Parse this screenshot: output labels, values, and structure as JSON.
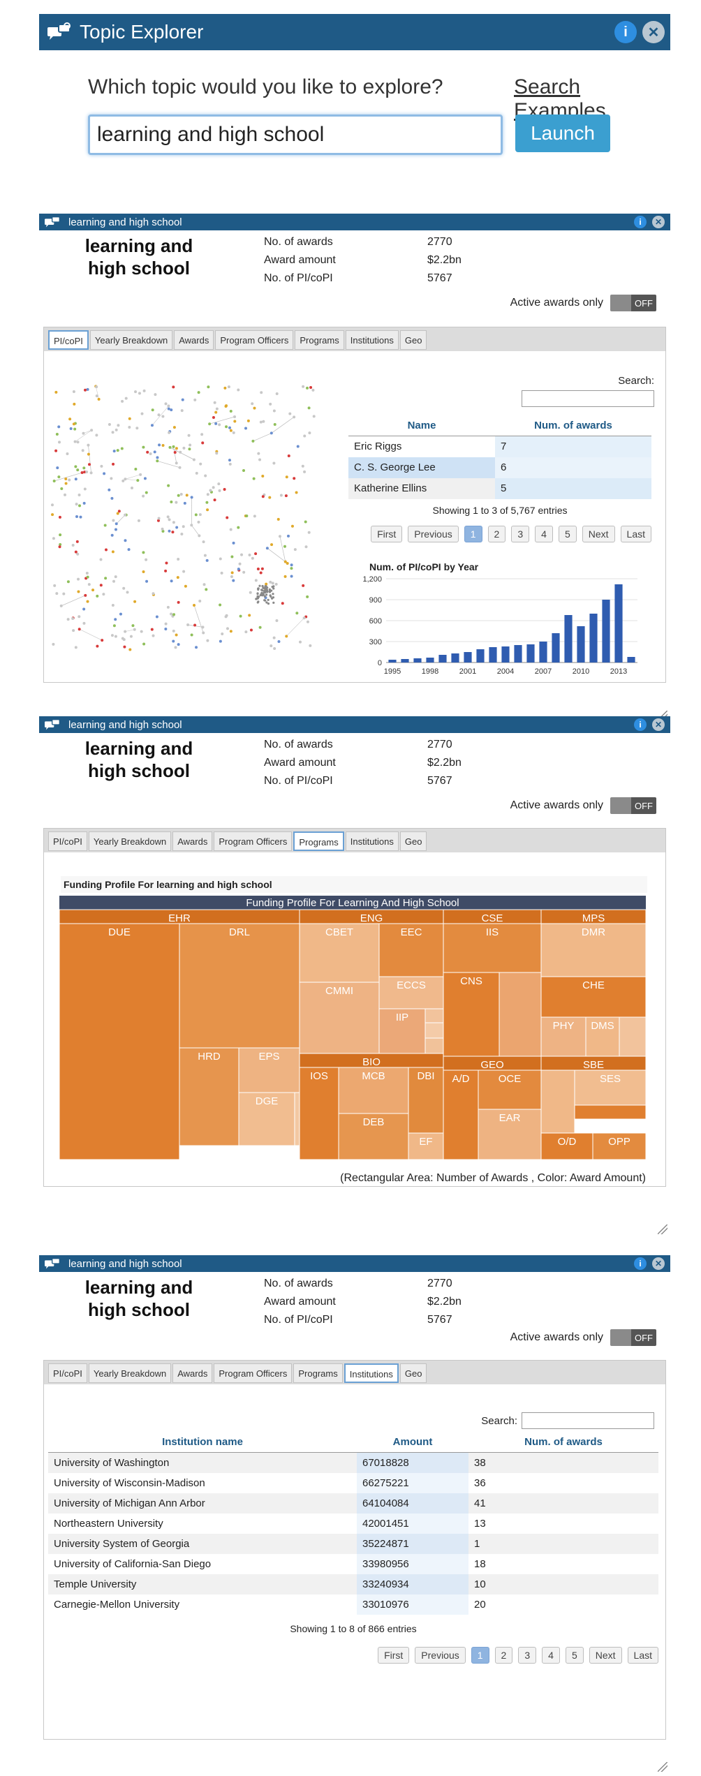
{
  "launcher": {
    "title": "Topic Explorer",
    "question": "Which topic would you like to explore?",
    "examples_link": "Search Examples",
    "input_value": "learning and high school",
    "launch_label": "Launch"
  },
  "summary": {
    "window_title": "learning and high school",
    "topic": "learning and high school",
    "rows": [
      {
        "label": "No. of awards",
        "value": "2770"
      },
      {
        "label": "Award amount",
        "value": "$2.2bn"
      },
      {
        "label": "No. of PI/coPI",
        "value": "5767"
      }
    ],
    "active_label": "Active awards only",
    "toggle_label": "OFF"
  },
  "tabs": [
    "PI/coPI",
    "Yearly Breakdown",
    "Awards",
    "Program Officers",
    "Programs",
    "Institutions",
    "Geo"
  ],
  "pi_panel": {
    "search_label": "Search:",
    "columns": [
      "Name",
      "Num. of awards"
    ],
    "rows": [
      {
        "name": "Eric Riggs",
        "count": "7"
      },
      {
        "name": "C. S. George Lee",
        "count": "6"
      },
      {
        "name": "Katherine Ellins",
        "count": "5"
      }
    ],
    "showing": "Showing 1 to 3 of 5,767 entries",
    "pager": {
      "first": "First",
      "previous": "Previous",
      "pages": [
        "1",
        "2",
        "3",
        "4",
        "5"
      ],
      "next": "Next",
      "last": "Last"
    }
  },
  "chart_data": {
    "type": "bar",
    "title": "Num. of PI/coPI by Year",
    "xlabel": "",
    "ylabel": "",
    "x": [
      1995,
      1996,
      1997,
      1998,
      1999,
      2000,
      2001,
      2002,
      2003,
      2004,
      2005,
      2006,
      2007,
      2008,
      2009,
      2010,
      2011,
      2012,
      2013,
      2014
    ],
    "values": [
      40,
      50,
      60,
      70,
      110,
      130,
      150,
      190,
      220,
      230,
      250,
      260,
      300,
      420,
      680,
      520,
      700,
      900,
      1120,
      80
    ],
    "xticks": [
      "1995",
      "1998",
      "2001",
      "2004",
      "2007",
      "2010",
      "2013"
    ],
    "yticks": [
      "0",
      "300",
      "600",
      "900",
      "1,200"
    ],
    "ylim": [
      0,
      1200
    ],
    "bar_color": "#2f5cb0"
  },
  "programs_panel": {
    "section_title": "Funding Profile For learning and high school",
    "treemap_title": "Funding Profile For Learning And High School",
    "footer": "(Rectangular Area: Number of Awards , Color: Award Amount)",
    "groups": [
      {
        "name": "EHR",
        "children": [
          "DUE",
          "DRL",
          "HRD",
          "EPS",
          "DGE"
        ]
      },
      {
        "name": "ENG",
        "children": [
          "CBET",
          "EEC",
          "ECCS",
          "CMMI",
          "IIP"
        ]
      },
      {
        "name": "BIO",
        "children": [
          "IOS",
          "MCB",
          "DBI",
          "DEB",
          "EF"
        ]
      },
      {
        "name": "CSE",
        "children": [
          "IIS",
          "CNS"
        ]
      },
      {
        "name": "GEO",
        "children": [
          "A/D",
          "OCE",
          "EAR"
        ]
      },
      {
        "name": "MPS",
        "children": [
          "DMR",
          "CHE",
          "PHY",
          "DMS"
        ]
      },
      {
        "name": "SBE",
        "children": [
          "SES",
          "O/D",
          "OPP"
        ]
      }
    ]
  },
  "institutions_panel": {
    "search_label": "Search:",
    "columns": [
      "Institution name",
      "Amount",
      "Num. of awards"
    ],
    "rows": [
      {
        "name": "University of Washington",
        "amount": "67018828",
        "count": "38"
      },
      {
        "name": "University of Wisconsin-Madison",
        "amount": "66275221",
        "count": "36"
      },
      {
        "name": "University of Michigan Ann Arbor",
        "amount": "64104084",
        "count": "41"
      },
      {
        "name": "Northeastern University",
        "amount": "42001451",
        "count": "13"
      },
      {
        "name": "University System of Georgia",
        "amount": "35224871",
        "count": "1"
      },
      {
        "name": "University of California-San Diego",
        "amount": "33980956",
        "count": "18"
      },
      {
        "name": "Temple University",
        "amount": "33240934",
        "count": "10"
      },
      {
        "name": "Carnegie-Mellon University",
        "amount": "33010976",
        "count": "20"
      }
    ],
    "showing": "Showing 1 to 8 of 866 entries"
  }
}
